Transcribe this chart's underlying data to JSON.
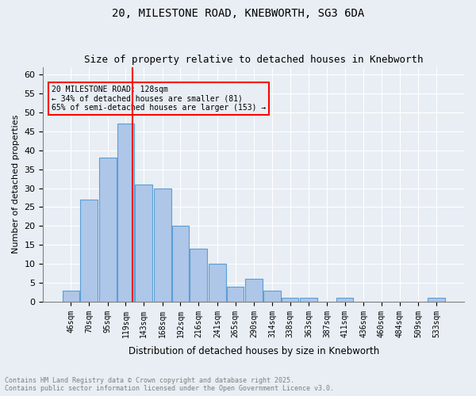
{
  "title1": "20, MILESTONE ROAD, KNEBWORTH, SG3 6DA",
  "title2": "Size of property relative to detached houses in Knebworth",
  "xlabel": "Distribution of detached houses by size in Knebworth",
  "ylabel": "Number of detached properties",
  "annotation_line1": "20 MILESTONE ROAD: 128sqm",
  "annotation_line2": "← 34% of detached houses are smaller (81)",
  "annotation_line3": "65% of semi-detached houses are larger (153) →",
  "footer1": "Contains HM Land Registry data © Crown copyright and database right 2025.",
  "footer2": "Contains public sector information licensed under the Open Government Licence v3.0.",
  "bar_color": "#aec6e8",
  "bar_edge_color": "#5a9fd4",
  "background_color": "#e8eef4",
  "red_line_x": 128,
  "categories": [
    46,
    70,
    95,
    119,
    143,
    168,
    192,
    216,
    241,
    265,
    290,
    314,
    338,
    363,
    387,
    411,
    436,
    460,
    484,
    509,
    533
  ],
  "values": [
    3,
    27,
    38,
    47,
    31,
    30,
    20,
    14,
    10,
    4,
    6,
    3,
    1,
    1,
    0,
    1,
    0,
    0,
    0,
    0,
    1
  ],
  "ylim": [
    0,
    62
  ],
  "yticks": [
    0,
    5,
    10,
    15,
    20,
    25,
    30,
    35,
    40,
    45,
    50,
    55,
    60
  ],
  "bin_width": 24
}
